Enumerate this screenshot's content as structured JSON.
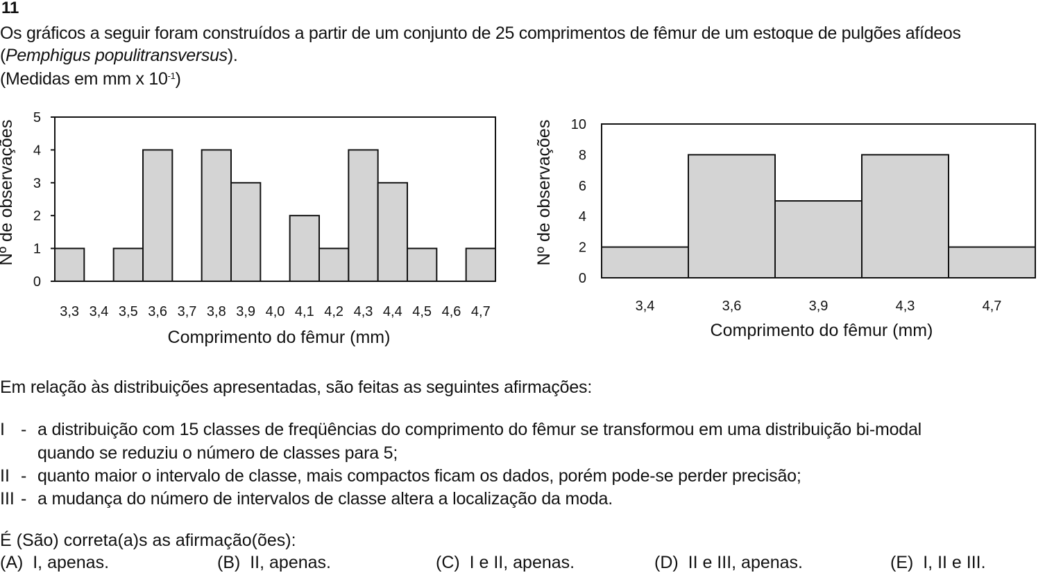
{
  "question": {
    "number": "11",
    "intro_line1": "Os gráficos a seguir foram construídos a partir de um conjunto de 25 comprimentos de fêmur de um estoque de pulgões afídeos",
    "species_open": "(",
    "species": "Pemphigus populitransversus",
    "species_close": ").",
    "units_prefix": "(Medidas em mm x 10",
    "units_exponent": "-1",
    "units_suffix": ")"
  },
  "chart_data": [
    {
      "type": "bar",
      "categories": [
        "3,3",
        "3,4",
        "3,5",
        "3,6",
        "3,7",
        "3,8",
        "3,9",
        "4,0",
        "4,1",
        "4,2",
        "4,3",
        "4,4",
        "4,5",
        "4,6",
        "4,7"
      ],
      "values": [
        1,
        0,
        1,
        4,
        0,
        4,
        3,
        0,
        2,
        1,
        4,
        3,
        1,
        0,
        1
      ],
      "xlabel": "Comprimento do fêmur (mm)",
      "ylabel": "Nº de observações",
      "ylim": [
        0,
        5
      ],
      "yticks": [
        "0",
        "1",
        "2",
        "3",
        "4",
        "5"
      ],
      "grid": false,
      "bar_color": "#d4d4d4"
    },
    {
      "type": "bar",
      "categories": [
        "3,4",
        "3,6",
        "3,9",
        "4,3",
        "4,7"
      ],
      "values": [
        2,
        8,
        5,
        8,
        2
      ],
      "xlabel": "Comprimento do fêmur (mm)",
      "ylabel": "Nº de observações",
      "ylim": [
        0,
        10
      ],
      "yticks": [
        "0",
        "2",
        "4",
        "6",
        "8",
        "10"
      ],
      "grid": false,
      "bar_color": "#d4d4d4"
    }
  ],
  "statements": {
    "lead": "Em relação às distribuições apresentadas, são feitas as seguintes afirmações:",
    "items": [
      {
        "roman": "I",
        "dash": "-",
        "line1": "a distribuição com 15 classes de freqüências do comprimento do fêmur se transformou em uma distribuição bi-modal",
        "line2": "quando se reduziu o número de classes para 5;"
      },
      {
        "roman": "II",
        "dash": "-",
        "line1": "quanto maior o intervalo de classe, mais compactos ficam os dados, porém pode-se perder precisão;"
      },
      {
        "roman": "III",
        "dash": "-",
        "line1": "a mudança do número de intervalos de classe altera a localização da moda."
      }
    ]
  },
  "prompt": "É (São) correta(a)s as afirmação(ões):",
  "options": [
    {
      "letter": "(A)",
      "text": "I, apenas."
    },
    {
      "letter": "(B)",
      "text": "II, apenas."
    },
    {
      "letter": "(C)",
      "text": "I e II, apenas."
    },
    {
      "letter": "(D)",
      "text": "II e III, apenas."
    },
    {
      "letter": "(E)",
      "text": "I, II e III."
    }
  ]
}
